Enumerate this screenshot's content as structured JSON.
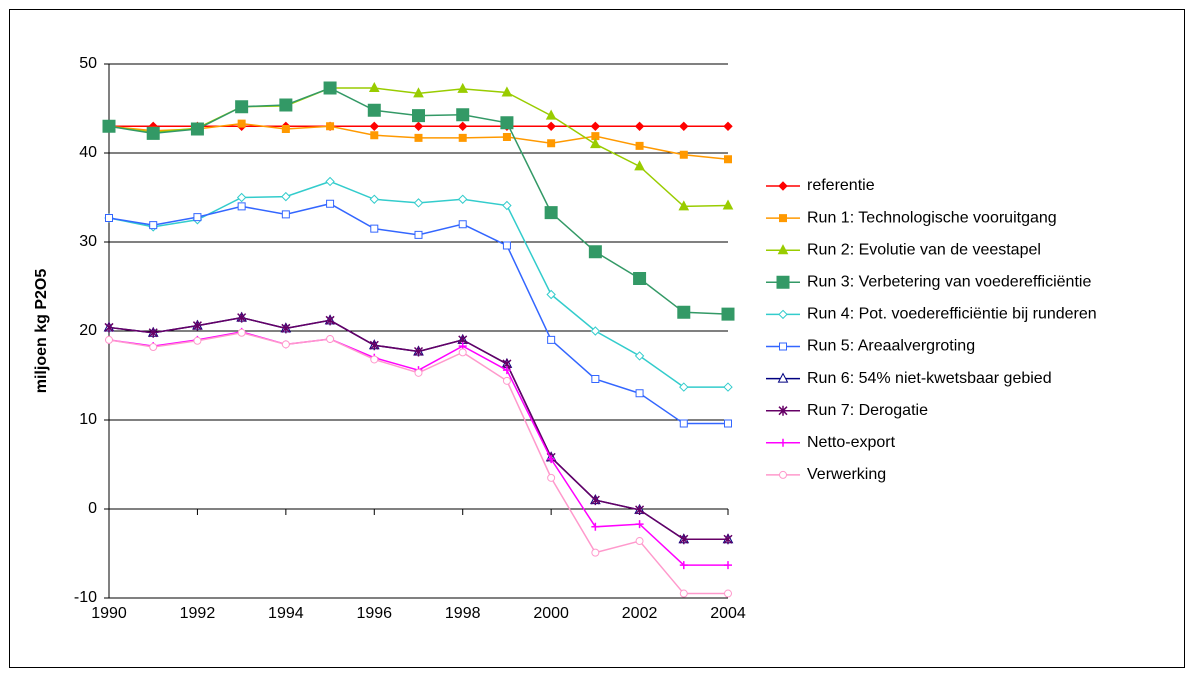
{
  "chart_data": {
    "type": "line",
    "ylabel": "miljoen kg P2O5",
    "x": [
      1990,
      1991,
      1992,
      1993,
      1994,
      1995,
      1996,
      1997,
      1998,
      1999,
      2000,
      2001,
      2002,
      2003,
      2004
    ],
    "xlim": [
      1990,
      2004
    ],
    "xticks": [
      1990,
      1992,
      1994,
      1996,
      1998,
      2000,
      2002,
      2004
    ],
    "ylim": [
      -10,
      50
    ],
    "yticks": [
      -10,
      0,
      10,
      20,
      30,
      40,
      50
    ],
    "grid": true,
    "series": [
      {
        "name": "referentie",
        "color": "#ff0000",
        "marker": "diamond",
        "values": [
          43,
          43,
          43,
          43,
          43,
          43,
          43,
          43,
          43,
          43,
          43,
          43,
          43,
          43,
          43
        ]
      },
      {
        "name": "Run 1: Technologische vooruitgang",
        "color": "#ff9900",
        "marker": "square",
        "values": [
          43,
          42.5,
          42.7,
          43.3,
          42.7,
          43,
          42,
          41.7,
          41.7,
          41.8,
          41.1,
          41.9,
          40.8,
          39.8,
          39.3
        ]
      },
      {
        "name": "Run 2: Evolutie van de veestapel",
        "color": "#99cc00",
        "marker": "triangle",
        "values": [
          43,
          42.3,
          42.8,
          45.2,
          45.3,
          47.3,
          47.3,
          46.7,
          47.2,
          46.8,
          44.2,
          41,
          38.5,
          34,
          34.1
        ]
      },
      {
        "name": "Run 3: Verbetering van voederefficiëntie",
        "color": "#339966",
        "marker": "big-square",
        "values": [
          43,
          42.2,
          42.7,
          45.2,
          45.4,
          47.3,
          44.8,
          44.2,
          44.3,
          43.4,
          33.3,
          28.9,
          25.9,
          22.1,
          21.9
        ]
      },
      {
        "name": "Run 4: Pot. voederefficiëntie bij runderen",
        "color": "#33cccc",
        "marker": "open-diamond",
        "values": [
          32.7,
          31.7,
          32.5,
          35,
          35.1,
          36.8,
          34.8,
          34.4,
          34.8,
          34.1,
          24.1,
          20,
          17.2,
          13.7,
          13.7
        ]
      },
      {
        "name": "Run 5: Areaalvergroting",
        "color": "#3366ff",
        "marker": "open-square",
        "values": [
          32.7,
          31.9,
          32.8,
          34,
          33.1,
          34.3,
          31.5,
          30.8,
          32,
          29.6,
          19,
          14.6,
          13,
          9.6,
          9.6
        ]
      },
      {
        "name": "Run 6: 54% niet-kwetsbaar gebied",
        "color": "#000080",
        "marker": "open-triangle",
        "values": [
          20.4,
          19.8,
          20.6,
          21.5,
          20.3,
          21.2,
          18.4,
          17.7,
          19,
          16.3,
          5.8,
          1,
          -0.1,
          -3.4,
          -3.4
        ]
      },
      {
        "name": "Run 7: Derogatie",
        "color": "#660066",
        "marker": "star",
        "values": [
          20.4,
          19.8,
          20.6,
          21.5,
          20.3,
          21.2,
          18.4,
          17.7,
          19,
          16.3,
          5.8,
          1,
          -0.1,
          -3.4,
          -3.4
        ]
      },
      {
        "name": "Netto-export",
        "color": "#ff00ff",
        "marker": "plus",
        "values": [
          19,
          18.3,
          19,
          19.9,
          18.5,
          19.1,
          17,
          15.6,
          18.3,
          15.6,
          5.6,
          -2,
          -1.7,
          -6.3,
          -6.3
        ]
      },
      {
        "name": "Verwerking",
        "color": "#ff99cc",
        "marker": "open-circle",
        "values": [
          19,
          18.2,
          18.9,
          19.8,
          18.5,
          19.1,
          16.8,
          15.3,
          17.6,
          14.4,
          3.5,
          -4.9,
          -3.6,
          -9.5,
          -9.5
        ]
      }
    ]
  }
}
